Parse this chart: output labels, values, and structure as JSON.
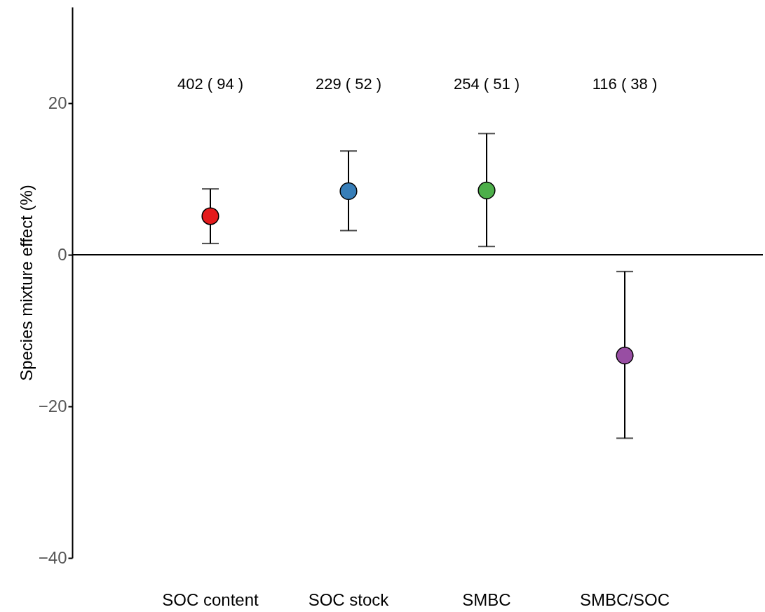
{
  "chart_data": {
    "type": "scatter",
    "ylabel": "Species mixture effect (%)",
    "categories": [
      "SOC content",
      "SOC stock",
      "SMBC",
      "SMBC/SOC"
    ],
    "values": [
      5.1,
      8.4,
      8.5,
      -13.3
    ],
    "colors": [
      "#e41a1c",
      "#377eb8",
      "#4daf4a",
      "#984ea3"
    ],
    "errors": [
      [
        1.5,
        8.7
      ],
      [
        3.2,
        13.7
      ],
      [
        1.1,
        16.0
      ],
      [
        -24.2,
        -2.2
      ]
    ],
    "ylim": [
      -40,
      32.7
    ],
    "yticks": [
      -40,
      -20,
      0,
      20
    ],
    "grid": false,
    "marker": "circle",
    "ref_lines": [
      {
        "axis": "y",
        "value": 0
      }
    ],
    "annotations": [
      "402 ( 94 )",
      "229 ( 52 )",
      "254 ( 51 )",
      "116 ( 38 )"
    ]
  }
}
